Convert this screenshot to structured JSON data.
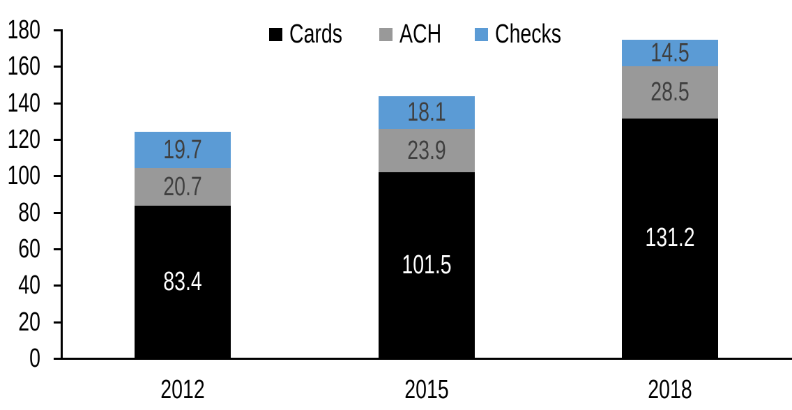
{
  "chart_data": {
    "type": "bar",
    "stacked": true,
    "title": "",
    "categories": [
      "2012",
      "2015",
      "2018"
    ],
    "series": [
      {
        "name": "Cards",
        "color": "#000000",
        "label_color": "#ffffff",
        "values": [
          83.4,
          101.5,
          131.2
        ]
      },
      {
        "name": "ACH",
        "color": "#999999",
        "label_color": "#3f3f3f",
        "values": [
          20.7,
          23.9,
          28.5
        ]
      },
      {
        "name": "Checks",
        "color": "#5b9bd5",
        "label_color": "#3f3f3f",
        "values": [
          19.7,
          18.1,
          14.5
        ]
      }
    ],
    "ylim": [
      0,
      180
    ],
    "ytick_interval": 20,
    "yticks": [
      0,
      20,
      40,
      60,
      80,
      100,
      120,
      140,
      160,
      180
    ],
    "xlabel": "",
    "ylabel": "",
    "grid": false,
    "legend": {
      "position": "top",
      "entries": [
        "Cards",
        "ACH",
        "Checks"
      ]
    },
    "value_label_decimals": 1,
    "axis_color": "#000000",
    "text_color": "#000000"
  }
}
